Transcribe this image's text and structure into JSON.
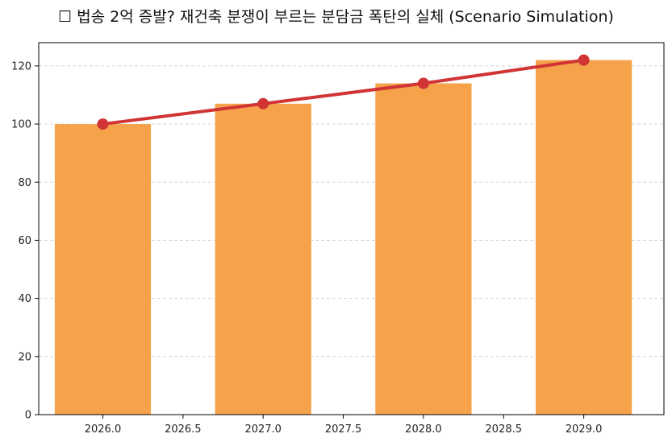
{
  "chart_data": {
    "type": "bar",
    "title": "☐ 법송 2억 증발? 재건축 분쟁이 부르는 분담금 폭탄의 실체 (Scenario Simulation)",
    "xlabel": "",
    "ylabel": "",
    "x": [
      2026,
      2027,
      2028,
      2029
    ],
    "bar_values": [
      100,
      107,
      114,
      122
    ],
    "line_values": [
      100,
      107,
      114,
      122
    ],
    "xlim": [
      2025.6,
      2029.5
    ],
    "ylim": [
      0,
      128
    ],
    "x_ticks": [
      "2026.0",
      "2026.5",
      "2027.0",
      "2027.5",
      "2028.0",
      "2028.5",
      "2029.0"
    ],
    "y_ticks": [
      "0",
      "20",
      "40",
      "60",
      "80",
      "100",
      "120"
    ],
    "grid": "horizontal-dashed",
    "colors": {
      "bar": "#f5a24b",
      "line": "#d03434",
      "marker": "#d03434"
    }
  }
}
